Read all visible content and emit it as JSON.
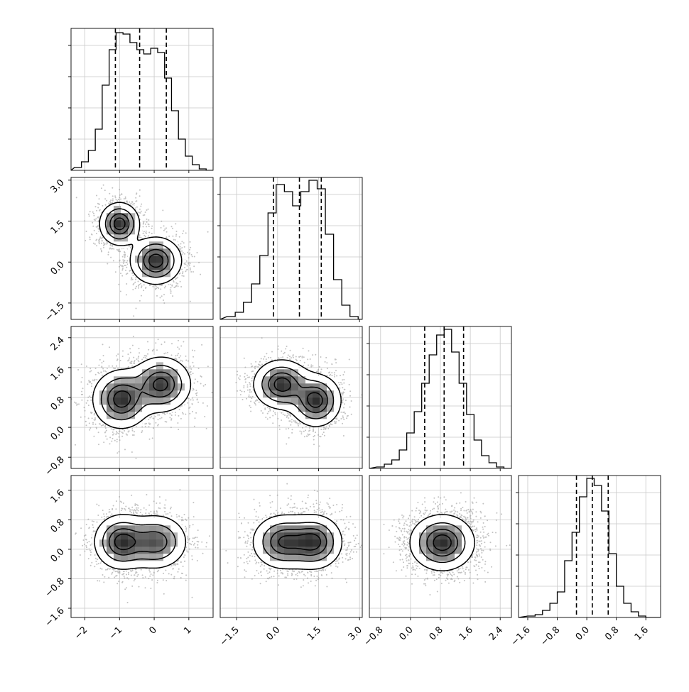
{
  "chart_data": {
    "type": "corner",
    "title": "",
    "grid": true,
    "variables": [
      {
        "xlim": [
          -2.4,
          1.7
        ],
        "ticks": [
          -2,
          -1,
          0,
          1
        ],
        "tick_labels": [
          "−2",
          "−1",
          "0",
          "1"
        ],
        "quantiles": [
          -1.12,
          -0.42,
          0.35
        ],
        "hist": [
          {
            "x": -2.2,
            "y": 0.02
          },
          {
            "x": -2.0,
            "y": 0.06
          },
          {
            "x": -1.8,
            "y": 0.14
          },
          {
            "x": -1.6,
            "y": 0.29
          },
          {
            "x": -1.4,
            "y": 0.6
          },
          {
            "x": -1.2,
            "y": 0.85
          },
          {
            "x": -1.0,
            "y": 0.97
          },
          {
            "x": -0.8,
            "y": 0.96
          },
          {
            "x": -0.6,
            "y": 0.9
          },
          {
            "x": -0.4,
            "y": 0.85
          },
          {
            "x": -0.2,
            "y": 0.82
          },
          {
            "x": 0.0,
            "y": 0.86
          },
          {
            "x": 0.2,
            "y": 0.83
          },
          {
            "x": 0.4,
            "y": 0.65
          },
          {
            "x": 0.6,
            "y": 0.42
          },
          {
            "x": 0.8,
            "y": 0.22
          },
          {
            "x": 1.0,
            "y": 0.1
          },
          {
            "x": 1.2,
            "y": 0.04
          },
          {
            "x": 1.4,
            "y": 0.01
          }
        ]
      },
      {
        "xlim": [
          -2.1,
          3.1
        ],
        "ticks": [
          -1.5,
          0.0,
          1.5,
          3.0
        ],
        "tick_labels": [
          "−1.5",
          "0.0",
          "1.5",
          "3.0"
        ],
        "quantiles": [
          -0.15,
          0.8,
          1.6
        ],
        "hist": [
          {
            "x": -1.7,
            "y": 0.02
          },
          {
            "x": -1.4,
            "y": 0.05
          },
          {
            "x": -1.1,
            "y": 0.12
          },
          {
            "x": -0.8,
            "y": 0.25
          },
          {
            "x": -0.5,
            "y": 0.45
          },
          {
            "x": -0.2,
            "y": 0.75
          },
          {
            "x": 0.1,
            "y": 0.95
          },
          {
            "x": 0.4,
            "y": 0.9
          },
          {
            "x": 0.7,
            "y": 0.8
          },
          {
            "x": 1.0,
            "y": 0.9
          },
          {
            "x": 1.3,
            "y": 0.98
          },
          {
            "x": 1.6,
            "y": 0.92
          },
          {
            "x": 1.9,
            "y": 0.6
          },
          {
            "x": 2.2,
            "y": 0.28
          },
          {
            "x": 2.5,
            "y": 0.1
          },
          {
            "x": 2.8,
            "y": 0.02
          }
        ]
      },
      {
        "xlim": [
          -1.1,
          2.7
        ],
        "ticks": [
          -0.8,
          0.0,
          0.8,
          1.6,
          2.4
        ],
        "tick_labels": [
          "−0.8",
          "0.0",
          "0.8",
          "1.6",
          "2.4"
        ],
        "quantiles": [
          0.38,
          0.9,
          1.42
        ],
        "hist": [
          {
            "x": -0.8,
            "y": 0.01
          },
          {
            "x": -0.6,
            "y": 0.03
          },
          {
            "x": -0.4,
            "y": 0.06
          },
          {
            "x": -0.2,
            "y": 0.13
          },
          {
            "x": 0.0,
            "y": 0.25
          },
          {
            "x": 0.2,
            "y": 0.4
          },
          {
            "x": 0.4,
            "y": 0.6
          },
          {
            "x": 0.6,
            "y": 0.8
          },
          {
            "x": 0.8,
            "y": 0.94
          },
          {
            "x": 1.0,
            "y": 0.98
          },
          {
            "x": 1.2,
            "y": 0.82
          },
          {
            "x": 1.4,
            "y": 0.6
          },
          {
            "x": 1.6,
            "y": 0.38
          },
          {
            "x": 1.8,
            "y": 0.2
          },
          {
            "x": 2.0,
            "y": 0.09
          },
          {
            "x": 2.2,
            "y": 0.04
          },
          {
            "x": 2.4,
            "y": 0.01
          }
        ]
      },
      {
        "xlim": [
          -1.85,
          2.0
        ],
        "ticks": [
          -1.6,
          -0.8,
          0.0,
          0.8,
          1.6
        ],
        "tick_labels": [
          "−1.6",
          "−0.8",
          "0.0",
          "0.8",
          "1.6"
        ],
        "quantiles": [
          -0.28,
          0.15,
          0.58
        ],
        "hist": [
          {
            "x": -1.5,
            "y": 0.01
          },
          {
            "x": -1.3,
            "y": 0.02
          },
          {
            "x": -1.1,
            "y": 0.05
          },
          {
            "x": -0.9,
            "y": 0.1
          },
          {
            "x": -0.7,
            "y": 0.18
          },
          {
            "x": -0.5,
            "y": 0.4
          },
          {
            "x": -0.3,
            "y": 0.6
          },
          {
            "x": -0.1,
            "y": 0.85
          },
          {
            "x": 0.1,
            "y": 0.98
          },
          {
            "x": 0.3,
            "y": 0.93
          },
          {
            "x": 0.5,
            "y": 0.75
          },
          {
            "x": 0.7,
            "y": 0.45
          },
          {
            "x": 0.9,
            "y": 0.22
          },
          {
            "x": 1.1,
            "y": 0.1
          },
          {
            "x": 1.3,
            "y": 0.04
          },
          {
            "x": 1.5,
            "y": 0.01
          }
        ]
      }
    ],
    "pairs": [
      {
        "row": 1,
        "col": 0,
        "modes": [
          {
            "x": -1.0,
            "y": 1.4,
            "sx": 0.28,
            "sy": 0.38,
            "w": 1.0
          },
          {
            "x": 0.05,
            "y": 0.05,
            "sx": 0.36,
            "sy": 0.42,
            "w": 1.0
          }
        ]
      },
      {
        "row": 2,
        "col": 0,
        "modes": [
          {
            "x": -0.95,
            "y": 0.75,
            "sx": 0.4,
            "sy": 0.38,
            "w": 1.0
          },
          {
            "x": 0.2,
            "y": 1.15,
            "sx": 0.42,
            "sy": 0.36,
            "w": 0.95
          }
        ]
      },
      {
        "row": 2,
        "col": 1,
        "modes": [
          {
            "x": 0.15,
            "y": 1.15,
            "sx": 0.5,
            "sy": 0.32,
            "w": 1.0
          },
          {
            "x": 1.4,
            "y": 0.72,
            "sx": 0.45,
            "sy": 0.34,
            "w": 1.0
          }
        ]
      },
      {
        "row": 3,
        "col": 0,
        "modes": [
          {
            "x": -0.95,
            "y": 0.2,
            "sx": 0.38,
            "sy": 0.36,
            "w": 1.0
          },
          {
            "x": 0.05,
            "y": 0.2,
            "sx": 0.44,
            "sy": 0.36,
            "w": 0.85
          }
        ]
      },
      {
        "row": 3,
        "col": 1,
        "modes": [
          {
            "x": 0.2,
            "y": 0.2,
            "sx": 0.55,
            "sy": 0.36,
            "w": 0.95
          },
          {
            "x": 1.35,
            "y": 0.2,
            "sx": 0.5,
            "sy": 0.36,
            "w": 1.0
          }
        ]
      },
      {
        "row": 3,
        "col": 2,
        "modes": [
          {
            "x": 0.85,
            "y": 0.18,
            "sx": 0.42,
            "sy": 0.37,
            "w": 1.0
          }
        ]
      }
    ],
    "contour_levels": [
      0.12,
      0.35,
      0.62,
      0.85
    ]
  }
}
